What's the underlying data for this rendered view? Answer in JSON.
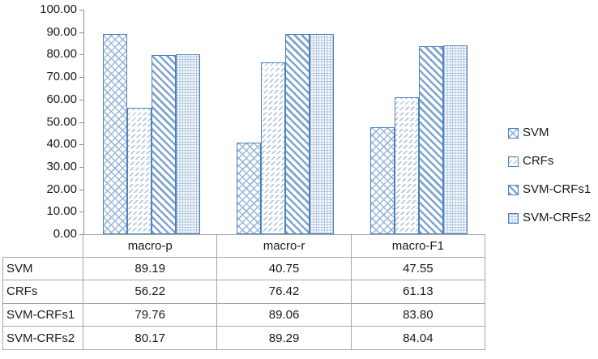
{
  "chart_data": {
    "type": "bar",
    "title": "",
    "xlabel": "",
    "ylabel": "",
    "categories": [
      "macro-p",
      "macro-r",
      "macro-F1"
    ],
    "series": [
      {
        "name": "SVM",
        "values": [
          89.19,
          40.75,
          47.55
        ],
        "pattern": "diag-crosshatch"
      },
      {
        "name": "CRFs",
        "values": [
          56.22,
          76.42,
          61.13
        ],
        "pattern": "dashed-diagonal"
      },
      {
        "name": "SVM-CRFs1",
        "values": [
          79.76,
          89.06,
          83.8
        ],
        "pattern": "wide-downward-diagonal"
      },
      {
        "name": "SVM-CRFs2",
        "values": [
          80.17,
          89.29,
          84.04
        ],
        "pattern": "dotted-grid"
      }
    ],
    "ylim": [
      0,
      100
    ],
    "ytick_step": 10,
    "ytick_labels": [
      "100.00",
      "90.00",
      "80.00",
      "70.00",
      "60.00",
      "50.00",
      "40.00",
      "30.00",
      "20.00",
      "10.00",
      "0.00"
    ],
    "grid": false,
    "legend_position": "right",
    "has_data_table": true
  },
  "data_table": {
    "column_headers": [
      "macro-p",
      "macro-r",
      "macro-F1"
    ],
    "rows": [
      {
        "label": "SVM",
        "cells": [
          "89.19",
          "40.75",
          "47.55"
        ]
      },
      {
        "label": "CRFs",
        "cells": [
          "56.22",
          "76.42",
          "61.13"
        ]
      },
      {
        "label": "SVM-CRFs1",
        "cells": [
          "79.76",
          "89.06",
          "83.80"
        ]
      },
      {
        "label": "SVM-CRFs2",
        "cells": [
          "80.17",
          "89.29",
          "84.04"
        ]
      }
    ]
  },
  "legend": {
    "items": [
      "SVM",
      "CRFs",
      "SVM-CRFs1",
      "SVM-CRFs2"
    ]
  },
  "colors": {
    "series_border": "#4f81bd",
    "pattern_crosshatch": "#9cb8d9",
    "pattern_dashed": "#a3bedc",
    "pattern_diagonal": "#7fa5cd",
    "pattern_dots": "#aec5e0",
    "axis_line": "#8e8e8e",
    "table_line": "#a6a6a6",
    "text": "#1a1a1a",
    "background": "#ffffff"
  }
}
